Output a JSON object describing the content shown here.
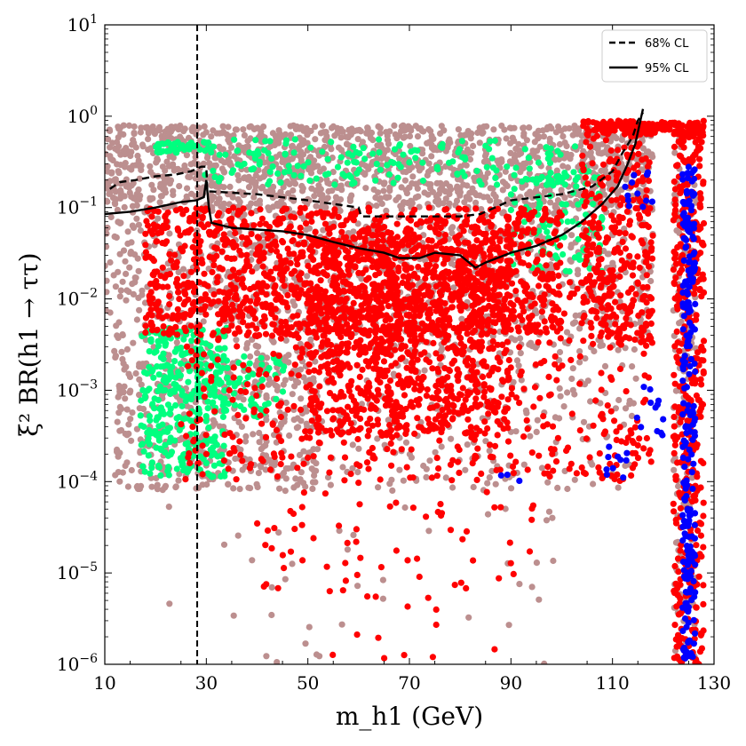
{
  "chart_data": {
    "type": "scatter",
    "title": "",
    "xlabel": "m_h1 (GeV)",
    "ylabel": "ξ² BR(h1 → ττ)",
    "xlim": [
      10,
      130
    ],
    "ylim_log10": [
      -6,
      1
    ],
    "yscale": "log",
    "x_ticks": [
      {
        "value": 10,
        "label": "10"
      },
      {
        "value": 30,
        "label": "30"
      },
      {
        "value": 50,
        "label": "50"
      },
      {
        "value": 70,
        "label": "70"
      },
      {
        "value": 90,
        "label": "90"
      },
      {
        "value": 110,
        "label": "110"
      },
      {
        "value": 130,
        "label": "130"
      }
    ],
    "y_ticks": [
      {
        "exp": 1,
        "base": "10",
        "sup": "1"
      },
      {
        "exp": 0,
        "base": "10",
        "sup": "0"
      },
      {
        "exp": -1,
        "base": "10",
        "sup": "−1"
      },
      {
        "exp": -2,
        "base": "10",
        "sup": "−2"
      },
      {
        "exp": -3,
        "base": "10",
        "sup": "−3"
      },
      {
        "exp": -4,
        "base": "10",
        "sup": "−4"
      },
      {
        "exp": -5,
        "base": "10",
        "sup": "−5"
      },
      {
        "exp": -6,
        "base": "10",
        "sup": "−6"
      }
    ],
    "vertical_line": {
      "x": 28.2,
      "style": "dashed",
      "color": "#000000"
    },
    "legend": {
      "position": "top-right",
      "entries": [
        {
          "label": "68% CL",
          "style": "dashed",
          "color": "#000000"
        },
        {
          "label": "95% CL",
          "style": "solid",
          "color": "#000000"
        }
      ]
    },
    "series": [
      {
        "name": "brown points",
        "color": "#bc8f8f",
        "role": "scatter-region",
        "regions": [
          {
            "x": [
              10,
              118
            ],
            "logy": [
              -1.0,
              -0.1
            ],
            "n": 1400
          },
          {
            "x": [
              10,
              118
            ],
            "logy": [
              -2.6,
              -1.0
            ],
            "n": 900
          },
          {
            "x": [
              12,
              52
            ],
            "logy": [
              -4.1,
              -2.6
            ],
            "n": 420
          },
          {
            "x": [
              40,
              115
            ],
            "logy": [
              -4.1,
              -2.6
            ],
            "n": 250
          },
          {
            "x": [
              20,
              100
            ],
            "logy": [
              -6.0,
              -4.1
            ],
            "n": 40
          },
          {
            "x": [
              122,
              126.5
            ],
            "logy": [
              -6.0,
              -0.1
            ],
            "n": 150
          }
        ]
      },
      {
        "name": "green points",
        "color": "#00ff7f",
        "role": "scatter-region",
        "regions": [
          {
            "x": [
              28,
              106
            ],
            "logy": [
              -0.75,
              -0.25
            ],
            "n": 170
          },
          {
            "x": [
              20,
              32
            ],
            "logy": [
              -0.4,
              -0.28
            ],
            "n": 40
          },
          {
            "x": [
              90,
              108
            ],
            "logy": [
              -1.7,
              -0.6
            ],
            "n": 110
          },
          {
            "x": [
              17,
              34
            ],
            "logy": [
              -3.95,
              -2.3
            ],
            "n": 320
          },
          {
            "x": [
              28,
              46
            ],
            "logy": [
              -3.3,
              -2.6
            ],
            "n": 90
          }
        ]
      },
      {
        "name": "red points",
        "color": "#ff0000",
        "role": "scatter-region",
        "regions": [
          {
            "x": [
              18,
              100
            ],
            "logy": [
              -2.4,
              -1.0
            ],
            "n": 1300
          },
          {
            "x": [
              50,
              90
            ],
            "logy": [
              -3.5,
              -1.3
            ],
            "n": 900
          },
          {
            "x": [
              25,
              118
            ],
            "logy": [
              -4.0,
              -1.8
            ],
            "n": 600
          },
          {
            "x": [
              40,
              95
            ],
            "logy": [
              -5.3,
              -3.9
            ],
            "n": 70
          },
          {
            "x": [
              50,
              90
            ],
            "logy": [
              -6.0,
              -5.3
            ],
            "n": 10
          },
          {
            "x": [
              104,
              118
            ],
            "logy": [
              -2.5,
              -0.1
            ],
            "n": 320
          },
          {
            "x": [
              104,
              128
            ],
            "logy": [
              -0.2,
              -0.05
            ],
            "n": 150
          },
          {
            "x": [
              122,
              128
            ],
            "logy": [
              -6.0,
              -0.1
            ],
            "n": 420
          }
        ]
      },
      {
        "name": "blue points",
        "color": "#0000ff",
        "role": "scatter-region",
        "regions": [
          {
            "x": [
              123.8,
              126.3
            ],
            "logy": [
              -6.0,
              -0.55
            ],
            "n": 240
          },
          {
            "x": [
              112,
              118
            ],
            "logy": [
              -1.0,
              -0.6
            ],
            "n": 12
          },
          {
            "x": [
              108,
              113
            ],
            "logy": [
              -4.0,
              -3.6
            ],
            "n": 10
          },
          {
            "x": [
              114,
              120
            ],
            "logy": [
              -3.5,
              -2.9
            ],
            "n": 12
          },
          {
            "x": [
              88,
              92
            ],
            "logy": [
              -4.0,
              -3.9
            ],
            "n": 3
          }
        ]
      },
      {
        "name": "68% CL",
        "type": "line",
        "color": "#000000",
        "dash": "dashed",
        "x": [
          11,
          13,
          16,
          20,
          24,
          27,
          29,
          30,
          30.2,
          31,
          40,
          50,
          60,
          60.5,
          70,
          80,
          84,
          90,
          100,
          106,
          110,
          112,
          114,
          115,
          116
        ],
        "y": [
          0.16,
          0.19,
          0.2,
          0.22,
          0.23,
          0.25,
          0.28,
          0.28,
          0.15,
          0.15,
          0.14,
          0.12,
          0.1,
          0.08,
          0.08,
          0.08,
          0.085,
          0.12,
          0.14,
          0.17,
          0.25,
          0.4,
          0.6,
          0.9,
          1.1
        ]
      },
      {
        "name": "95% CL",
        "type": "line",
        "color": "#000000",
        "dash": "solid",
        "x": [
          10,
          15,
          20,
          25,
          28,
          29.5,
          30,
          30.5,
          31,
          35,
          45,
          50,
          55,
          60,
          65,
          68,
          72,
          75,
          80,
          83,
          85,
          90,
          95,
          100,
          104,
          108,
          111,
          113,
          114.5,
          115.5,
          116
        ],
        "y": [
          0.085,
          0.09,
          0.1,
          0.115,
          0.12,
          0.13,
          0.2,
          0.1,
          0.068,
          0.06,
          0.055,
          0.05,
          0.042,
          0.036,
          0.032,
          0.028,
          0.028,
          0.032,
          0.03,
          0.022,
          0.025,
          0.032,
          0.038,
          0.05,
          0.07,
          0.11,
          0.17,
          0.3,
          0.5,
          0.9,
          1.2
        ]
      }
    ]
  }
}
